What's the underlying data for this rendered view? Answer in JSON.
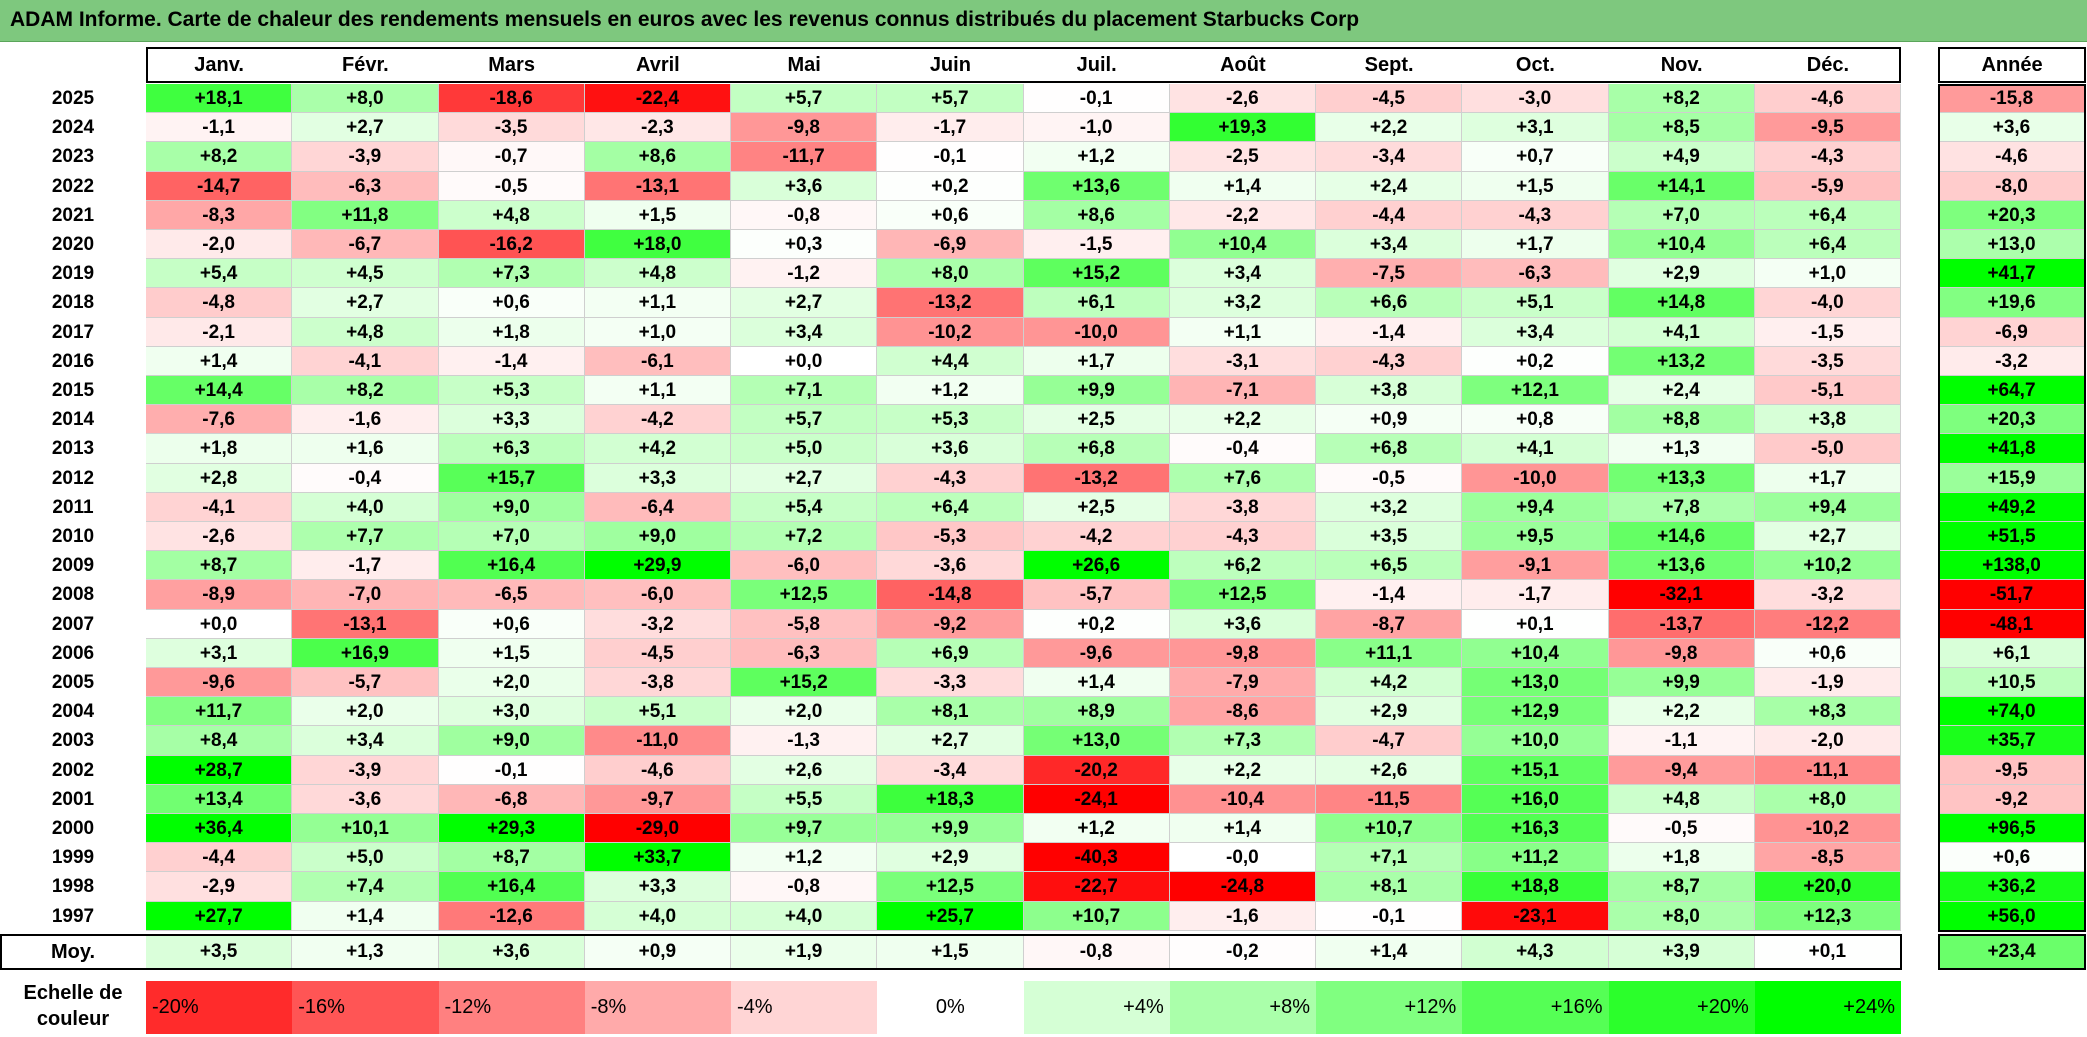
{
  "title": "ADAM Informe. Carte de chaleur des rendements mensuels en euros avec les revenus connus distribués du placement Starbucks Corp",
  "chart_data": {
    "type": "heatmap",
    "title": "ADAM Informe. Carte de chaleur des rendements mensuels en euros avec les revenus connus distribués du placement Starbucks Corp",
    "columns": [
      "Janv.",
      "Févr.",
      "Mars",
      "Avril",
      "Mai",
      "Juin",
      "Juil.",
      "Août",
      "Sept.",
      "Oct.",
      "Nov.",
      "Déc."
    ],
    "annual_label": "Année",
    "rows": [
      {
        "year": "2025",
        "values": [
          "+18,1",
          "+8,0",
          "-18,6",
          "-22,4",
          "+5,7",
          "+5,7",
          "-0,1",
          "-2,6",
          "-4,5",
          "-3,0",
          "+8,2",
          "-4,6"
        ],
        "annual": "-15,8"
      },
      {
        "year": "2024",
        "values": [
          "-1,1",
          "+2,7",
          "-3,5",
          "-2,3",
          "-9,8",
          "-1,7",
          "-1,0",
          "+19,3",
          "+2,2",
          "+3,1",
          "+8,5",
          "-9,5"
        ],
        "annual": "+3,6"
      },
      {
        "year": "2023",
        "values": [
          "+8,2",
          "-3,9",
          "-0,7",
          "+8,6",
          "-11,7",
          "-0,1",
          "+1,2",
          "-2,5",
          "-3,4",
          "+0,7",
          "+4,9",
          "-4,3"
        ],
        "annual": "-4,6"
      },
      {
        "year": "2022",
        "values": [
          "-14,7",
          "-6,3",
          "-0,5",
          "-13,1",
          "+3,6",
          "+0,2",
          "+13,6",
          "+1,4",
          "+2,4",
          "+1,5",
          "+14,1",
          "-5,9"
        ],
        "annual": "-8,0"
      },
      {
        "year": "2021",
        "values": [
          "-8,3",
          "+11,8",
          "+4,8",
          "+1,5",
          "-0,8",
          "+0,6",
          "+8,6",
          "-2,2",
          "-4,4",
          "-4,3",
          "+7,0",
          "+6,4"
        ],
        "annual": "+20,3"
      },
      {
        "year": "2020",
        "values": [
          "-2,0",
          "-6,7",
          "-16,2",
          "+18,0",
          "+0,3",
          "-6,9",
          "-1,5",
          "+10,4",
          "+3,4",
          "+1,7",
          "+10,4",
          "+6,4"
        ],
        "annual": "+13,0"
      },
      {
        "year": "2019",
        "values": [
          "+5,4",
          "+4,5",
          "+7,3",
          "+4,8",
          "-1,2",
          "+8,0",
          "+15,2",
          "+3,4",
          "-7,5",
          "-6,3",
          "+2,9",
          "+1,0"
        ],
        "annual": "+41,7"
      },
      {
        "year": "2018",
        "values": [
          "-4,8",
          "+2,7",
          "+0,6",
          "+1,1",
          "+2,7",
          "-13,2",
          "+6,1",
          "+3,2",
          "+6,6",
          "+5,1",
          "+14,8",
          "-4,0"
        ],
        "annual": "+19,6"
      },
      {
        "year": "2017",
        "values": [
          "-2,1",
          "+4,8",
          "+1,8",
          "+1,0",
          "+3,4",
          "-10,2",
          "-10,0",
          "+1,1",
          "-1,4",
          "+3,4",
          "+4,1",
          "-1,5"
        ],
        "annual": "-6,9"
      },
      {
        "year": "2016",
        "values": [
          "+1,4",
          "-4,1",
          "-1,4",
          "-6,1",
          "+0,0",
          "+4,4",
          "+1,7",
          "-3,1",
          "-4,3",
          "+0,2",
          "+13,2",
          "-3,5"
        ],
        "annual": "-3,2"
      },
      {
        "year": "2015",
        "values": [
          "+14,4",
          "+8,2",
          "+5,3",
          "+1,1",
          "+7,1",
          "+1,2",
          "+9,9",
          "-7,1",
          "+3,8",
          "+12,1",
          "+2,4",
          "-5,1"
        ],
        "annual": "+64,7"
      },
      {
        "year": "2014",
        "values": [
          "-7,6",
          "-1,6",
          "+3,3",
          "-4,2",
          "+5,7",
          "+5,3",
          "+2,5",
          "+2,2",
          "+0,9",
          "+0,8",
          "+8,8",
          "+3,8"
        ],
        "annual": "+20,3"
      },
      {
        "year": "2013",
        "values": [
          "+1,8",
          "+1,6",
          "+6,3",
          "+4,2",
          "+5,0",
          "+3,6",
          "+6,8",
          "-0,4",
          "+6,8",
          "+4,1",
          "+1,3",
          "-5,0"
        ],
        "annual": "+41,8"
      },
      {
        "year": "2012",
        "values": [
          "+2,8",
          "-0,4",
          "+15,7",
          "+3,3",
          "+2,7",
          "-4,3",
          "-13,2",
          "+7,6",
          "-0,5",
          "-10,0",
          "+13,3",
          "+1,7"
        ],
        "annual": "+15,9"
      },
      {
        "year": "2011",
        "values": [
          "-4,1",
          "+4,0",
          "+9,0",
          "-6,4",
          "+5,4",
          "+6,4",
          "+2,5",
          "-3,8",
          "+3,2",
          "+9,4",
          "+7,8",
          "+9,4"
        ],
        "annual": "+49,2"
      },
      {
        "year": "2010",
        "values": [
          "-2,6",
          "+7,7",
          "+7,0",
          "+9,0",
          "+7,2",
          "-5,3",
          "-4,2",
          "-4,3",
          "+3,5",
          "+9,5",
          "+14,6",
          "+2,7"
        ],
        "annual": "+51,5"
      },
      {
        "year": "2009",
        "values": [
          "+8,7",
          "-1,7",
          "+16,4",
          "+29,9",
          "-6,0",
          "-3,6",
          "+26,6",
          "+6,2",
          "+6,5",
          "-9,1",
          "+13,6",
          "+10,2"
        ],
        "annual": "+138,0"
      },
      {
        "year": "2008",
        "values": [
          "-8,9",
          "-7,0",
          "-6,5",
          "-6,0",
          "+12,5",
          "-14,8",
          "-5,7",
          "+12,5",
          "-1,4",
          "-1,7",
          "-32,1",
          "-3,2"
        ],
        "annual": "-51,7"
      },
      {
        "year": "2007",
        "values": [
          "+0,0",
          "-13,1",
          "+0,6",
          "-3,2",
          "-5,8",
          "-9,2",
          "+0,2",
          "+3,6",
          "-8,7",
          "+0,1",
          "-13,7",
          "-12,2"
        ],
        "annual": "-48,1"
      },
      {
        "year": "2006",
        "values": [
          "+3,1",
          "+16,9",
          "+1,5",
          "-4,5",
          "-6,3",
          "+6,9",
          "-9,6",
          "-9,8",
          "+11,1",
          "+10,4",
          "-9,8",
          "+0,6"
        ],
        "annual": "+6,1"
      },
      {
        "year": "2005",
        "values": [
          "-9,6",
          "-5,7",
          "+2,0",
          "-3,8",
          "+15,2",
          "-3,3",
          "+1,4",
          "-7,9",
          "+4,2",
          "+13,0",
          "+9,9",
          "-1,9"
        ],
        "annual": "+10,5"
      },
      {
        "year": "2004",
        "values": [
          "+11,7",
          "+2,0",
          "+3,0",
          "+5,1",
          "+2,0",
          "+8,1",
          "+8,9",
          "-8,6",
          "+2,9",
          "+12,9",
          "+2,2",
          "+8,3"
        ],
        "annual": "+74,0"
      },
      {
        "year": "2003",
        "values": [
          "+8,4",
          "+3,4",
          "+9,0",
          "-11,0",
          "-1,3",
          "+2,7",
          "+13,0",
          "+7,3",
          "-4,7",
          "+10,0",
          "-1,1",
          "-2,0"
        ],
        "annual": "+35,7"
      },
      {
        "year": "2002",
        "values": [
          "+28,7",
          "-3,9",
          "-0,1",
          "-4,6",
          "+2,6",
          "-3,4",
          "-20,2",
          "+2,2",
          "+2,6",
          "+15,1",
          "-9,4",
          "-11,1"
        ],
        "annual": "-9,5"
      },
      {
        "year": "2001",
        "values": [
          "+13,4",
          "-3,6",
          "-6,8",
          "-9,7",
          "+5,5",
          "+18,3",
          "-24,1",
          "-10,4",
          "-11,5",
          "+16,0",
          "+4,8",
          "+8,0"
        ],
        "annual": "-9,2"
      },
      {
        "year": "2000",
        "values": [
          "+36,4",
          "+10,1",
          "+29,3",
          "-29,0",
          "+9,7",
          "+9,9",
          "+1,2",
          "+1,4",
          "+10,7",
          "+16,3",
          "-0,5",
          "-10,2"
        ],
        "annual": "+96,5"
      },
      {
        "year": "1999",
        "values": [
          "-4,4",
          "+5,0",
          "+8,7",
          "+33,7",
          "+1,2",
          "+2,9",
          "-40,3",
          "-0,0",
          "+7,1",
          "+11,2",
          "+1,8",
          "-8,5"
        ],
        "annual": "+0,6"
      },
      {
        "year": "1998",
        "values": [
          "-2,9",
          "+7,4",
          "+16,4",
          "+3,3",
          "-0,8",
          "+12,5",
          "-22,7",
          "-24,8",
          "+8,1",
          "+18,8",
          "+8,7",
          "+20,0"
        ],
        "annual": "+36,2"
      },
      {
        "year": "1997",
        "values": [
          "+27,7",
          "+1,4",
          "-12,6",
          "+4,0",
          "+4,0",
          "+25,7",
          "+10,7",
          "-1,6",
          "-0,1",
          "-23,1",
          "+8,0",
          "+12,3"
        ],
        "annual": "+56,0"
      }
    ],
    "average": {
      "label": "Moy.",
      "values": [
        "+3,5",
        "+1,3",
        "+3,6",
        "+0,9",
        "+1,9",
        "+1,5",
        "-0,8",
        "-0,2",
        "+1,4",
        "+4,3",
        "+3,9",
        "+0,1"
      ],
      "annual": "+23,4"
    },
    "scale": {
      "label": "Echelle de couleur",
      "stops": [
        "-20%",
        "-16%",
        "-12%",
        "-8%",
        "-4%",
        "0%",
        "+4%",
        "+8%",
        "+12%",
        "+16%",
        "+20%",
        "+24%"
      ]
    },
    "colors": {
      "neg_max": "#ff0000",
      "pos_max": "#00ff00",
      "neutral": "#ffffff",
      "title_bg": "#7ec87e"
    }
  }
}
